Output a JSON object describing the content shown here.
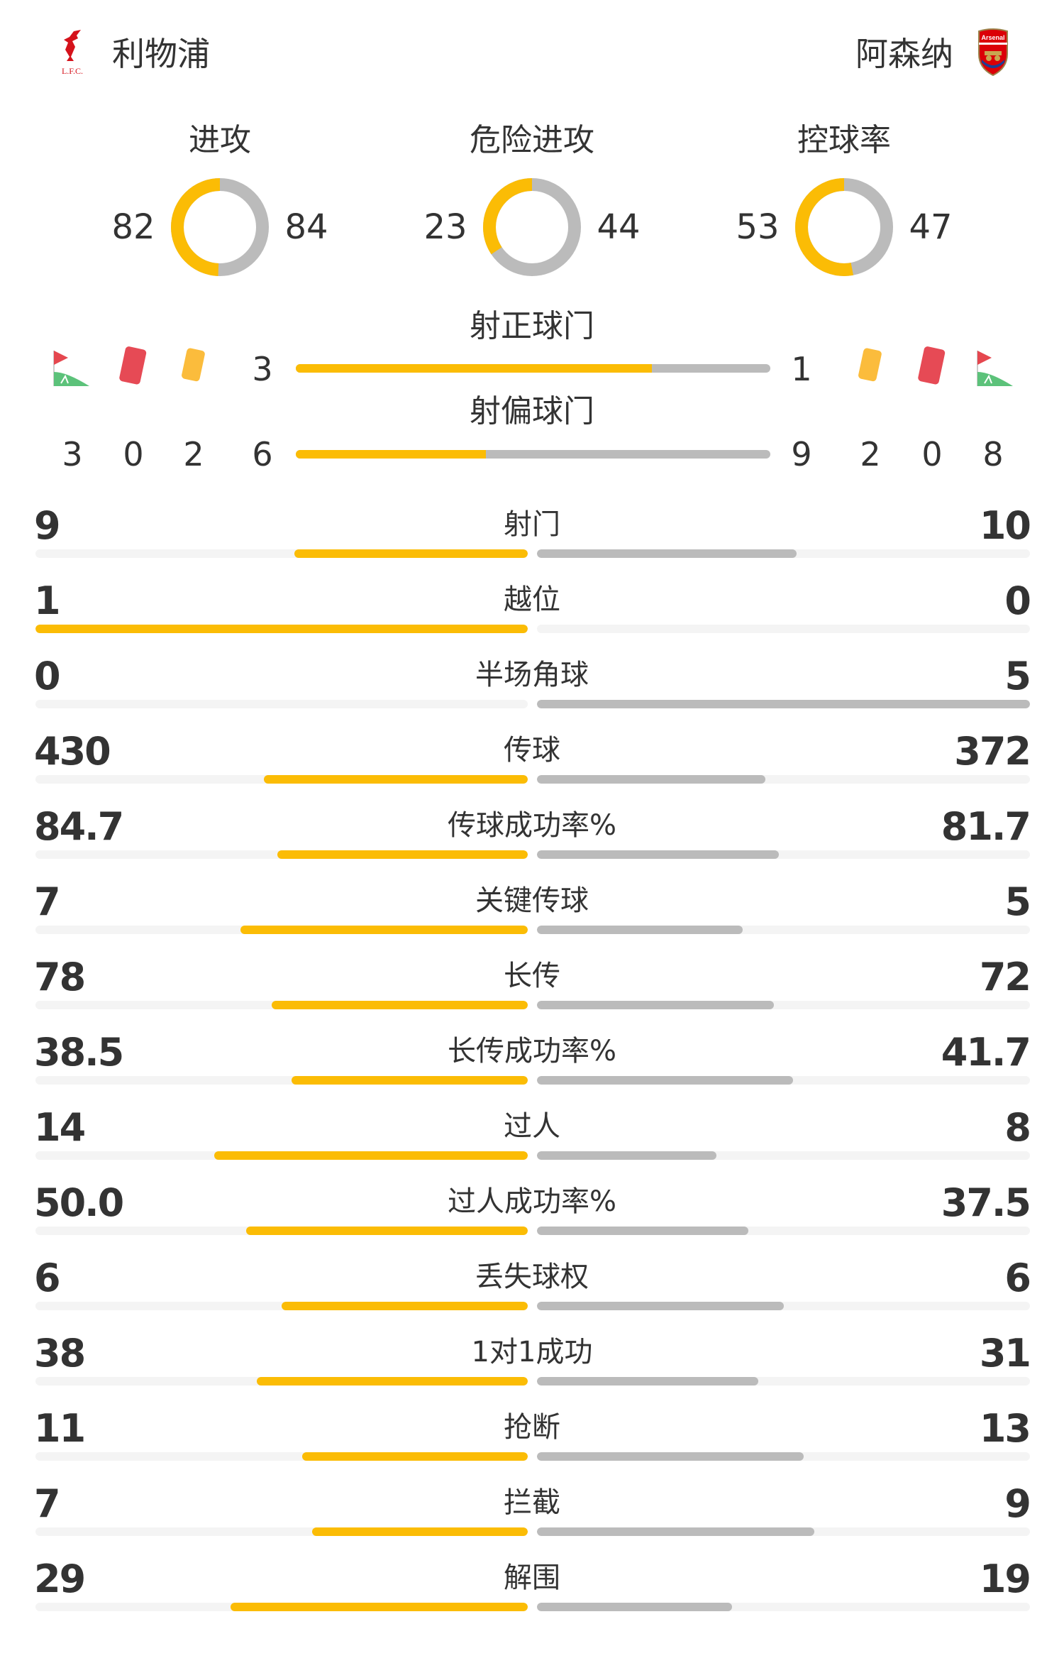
{
  "colors": {
    "home": "#fbbc05",
    "away": "#bbbbbb",
    "track": "#f4f4f4",
    "text": "#333333"
  },
  "home": {
    "name": "利物浦",
    "logo": "liverpool-crest",
    "logo_text": "LFC"
  },
  "away": {
    "name": "阿森纳",
    "logo": "arsenal-crest",
    "logo_text": "Arsenal"
  },
  "donuts": [
    {
      "title": "进攻",
      "home": 82,
      "away": 84
    },
    {
      "title": "危险进攻",
      "home": 23,
      "away": 44
    },
    {
      "title": "控球率",
      "home": 53,
      "away": 47
    }
  ],
  "shots": {
    "on_target": {
      "title": "射正球门",
      "home": 3,
      "away": 1
    },
    "off_target": {
      "title": "射偏球门",
      "home": 6,
      "away": 9
    }
  },
  "discipline": {
    "home": {
      "corners": 3,
      "red_cards": 0,
      "yellow_cards": 2
    },
    "away": {
      "yellow_cards": 2,
      "red_cards": 0,
      "corners": 8
    }
  },
  "stats": [
    {
      "label": "射门",
      "home": "9",
      "away": "10"
    },
    {
      "label": "越位",
      "home": "1",
      "away": "0"
    },
    {
      "label": "半场角球",
      "home": "0",
      "away": "5"
    },
    {
      "label": "传球",
      "home": "430",
      "away": "372"
    },
    {
      "label": "传球成功率%",
      "home": "84.7",
      "away": "81.7"
    },
    {
      "label": "关键传球",
      "home": "7",
      "away": "5"
    },
    {
      "label": "长传",
      "home": "78",
      "away": "72"
    },
    {
      "label": "长传成功率%",
      "home": "38.5",
      "away": "41.7"
    },
    {
      "label": "过人",
      "home": "14",
      "away": "8"
    },
    {
      "label": "过人成功率%",
      "home": "50.0",
      "away": "37.5"
    },
    {
      "label": "丢失球权",
      "home": "6",
      "away": "6"
    },
    {
      "label": "1对1成功",
      "home": "38",
      "away": "31"
    },
    {
      "label": "抢断",
      "home": "11",
      "away": "13"
    },
    {
      "label": "拦截",
      "home": "7",
      "away": "9"
    },
    {
      "label": "解围",
      "home": "29",
      "away": "19"
    }
  ]
}
